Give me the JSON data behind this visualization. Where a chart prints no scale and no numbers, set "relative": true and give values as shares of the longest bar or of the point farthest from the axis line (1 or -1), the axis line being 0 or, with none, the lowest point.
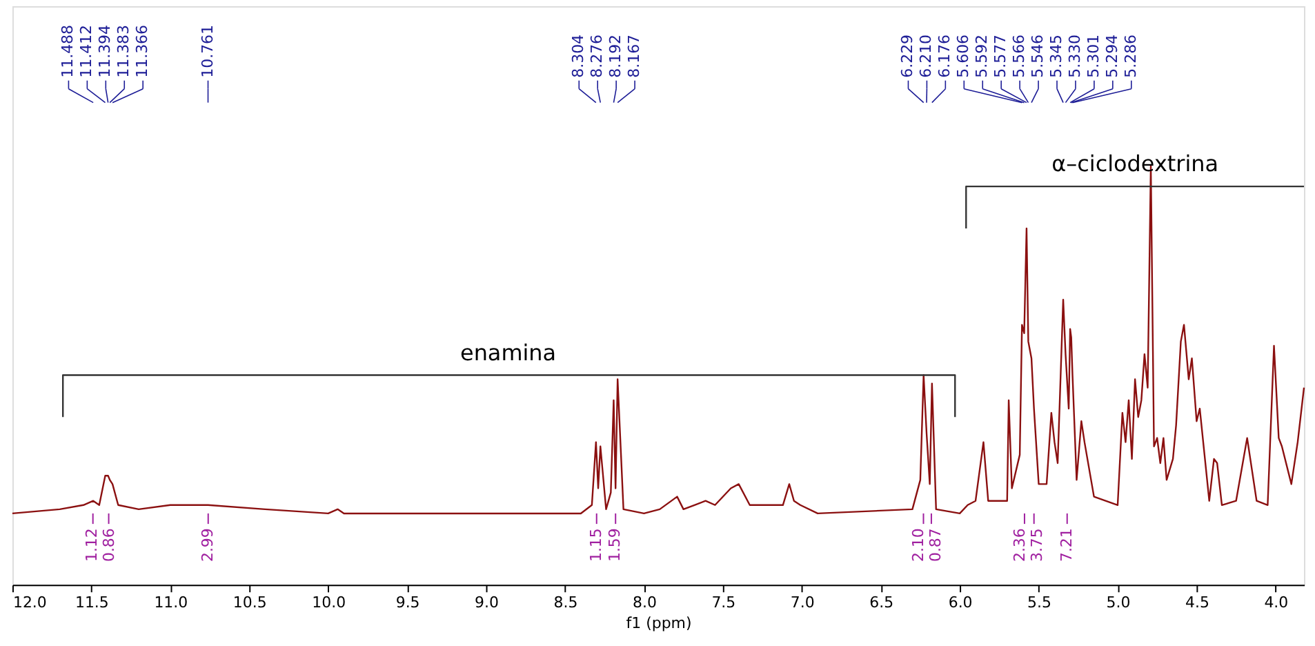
{
  "chart_data": {
    "type": "line",
    "relative": true,
    "xlabel": "f1 (ppm)",
    "xlim": [
      12.0,
      3.82
    ],
    "xticks": [
      {
        "value": 12,
        "label": "12.0"
      },
      11.5,
      {
        "value": 11,
        "label": "11.0"
      },
      10.5,
      {
        "value": 10,
        "label": "10.0"
      },
      9.5,
      {
        "value": 9,
        "label": "9.0"
      },
      8.5,
      {
        "value": 8,
        "label": "8.0"
      },
      7.5,
      {
        "value": 7,
        "label": "7.0"
      },
      6.5,
      {
        "value": 6,
        "label": "6.0"
      },
      5.5,
      {
        "value": 5,
        "label": "5.0"
      },
      4.5,
      {
        "value": 4,
        "label": "4.0"
      }
    ],
    "grid": false,
    "marker": "none",
    "line_style": "solid",
    "series": [
      {
        "color": "#8b1010",
        "x": [
          12.0,
          11.7,
          11.55,
          11.488,
          11.45,
          11.412,
          11.394,
          11.383,
          11.366,
          11.33,
          11.2,
          11.0,
          10.761,
          10.4,
          10.0,
          9.94,
          9.9,
          9.0,
          8.4,
          8.33,
          8.304,
          8.29,
          8.276,
          8.24,
          8.21,
          8.192,
          8.18,
          8.167,
          8.13,
          8.0,
          7.9,
          7.79,
          7.75,
          7.68,
          7.61,
          7.55,
          7.45,
          7.4,
          7.33,
          7.25,
          7.2,
          7.18,
          7.12,
          7.08,
          7.05,
          7.01,
          6.9,
          6.3,
          6.25,
          6.229,
          6.21,
          6.19,
          6.176,
          6.15,
          6.0,
          5.95,
          5.9,
          5.85,
          5.82,
          5.7,
          5.69,
          5.67,
          5.62,
          5.606,
          5.592,
          5.577,
          5.566,
          5.546,
          5.53,
          5.5,
          5.45,
          5.42,
          5.4,
          5.38,
          5.345,
          5.33,
          5.31,
          5.301,
          5.294,
          5.286,
          5.26,
          5.23,
          5.21,
          5.15,
          5.0,
          4.97,
          4.95,
          4.93,
          4.91,
          4.89,
          4.87,
          4.85,
          4.83,
          4.81,
          4.79,
          4.77,
          4.75,
          4.73,
          4.71,
          4.69,
          4.65,
          4.63,
          4.6,
          4.58,
          4.55,
          4.53,
          4.5,
          4.48,
          4.45,
          4.42,
          4.39,
          4.37,
          4.34,
          4.25,
          4.18,
          4.12,
          4.05,
          4.01,
          3.98,
          3.96,
          3.9,
          3.86,
          3.82
        ],
        "values": [
          0.17,
          0.18,
          0.19,
          0.2,
          0.19,
          0.26,
          0.26,
          0.25,
          0.24,
          0.19,
          0.18,
          0.19,
          0.19,
          0.18,
          0.17,
          0.18,
          0.17,
          0.17,
          0.17,
          0.19,
          0.34,
          0.23,
          0.33,
          0.18,
          0.22,
          0.44,
          0.23,
          0.49,
          0.18,
          0.17,
          0.18,
          0.21,
          0.18,
          0.19,
          0.2,
          0.19,
          0.23,
          0.24,
          0.19,
          0.19,
          0.19,
          0.19,
          0.19,
          0.24,
          0.2,
          0.19,
          0.17,
          0.18,
          0.25,
          0.5,
          0.36,
          0.24,
          0.48,
          0.18,
          0.17,
          0.19,
          0.2,
          0.34,
          0.2,
          0.2,
          0.44,
          0.23,
          0.31,
          0.62,
          0.6,
          0.85,
          0.58,
          0.54,
          0.42,
          0.24,
          0.24,
          0.41,
          0.34,
          0.29,
          0.68,
          0.55,
          0.42,
          0.61,
          0.59,
          0.5,
          0.25,
          0.39,
          0.34,
          0.21,
          0.19,
          0.41,
          0.34,
          0.44,
          0.3,
          0.49,
          0.4,
          0.44,
          0.55,
          0.47,
          1.0,
          0.33,
          0.35,
          0.29,
          0.35,
          0.25,
          0.3,
          0.38,
          0.58,
          0.62,
          0.49,
          0.54,
          0.39,
          0.42,
          0.31,
          0.2,
          0.3,
          0.29,
          0.19,
          0.2,
          0.35,
          0.2,
          0.19,
          0.57,
          0.35,
          0.33,
          0.24,
          0.34,
          0.47
        ]
      },
      {
        "color": "#333333",
        "x": [
          11.68,
          11.68,
          6.03,
          6.03
        ],
        "values": [
          0.4,
          0.5,
          0.5,
          0.4
        ]
      },
      {
        "color": "#333333",
        "x": [
          5.96,
          5.96,
          3.82
        ],
        "values": [
          0.85,
          0.95,
          0.95
        ]
      }
    ],
    "annotations": [
      {
        "text": "enamina",
        "x": 8.86,
        "y": 0.5
      },
      {
        "text": "α–ciclodextrina",
        "x": 4.89,
        "y": 0.95
      },
      {
        "text": "11.488",
        "x": 11.488
      },
      {
        "text": "11.412",
        "x": 11.412
      },
      {
        "text": "11.394",
        "x": 11.394
      },
      {
        "text": "11.383",
        "x": 11.383
      },
      {
        "text": "11.366",
        "x": 11.366
      },
      {
        "text": "10.761",
        "x": 10.761
      },
      {
        "text": "8.304",
        "x": 8.304
      },
      {
        "text": "8.276",
        "x": 8.276
      },
      {
        "text": "8.192",
        "x": 8.192
      },
      {
        "text": "8.167",
        "x": 8.167
      },
      {
        "text": "6.229",
        "x": 6.229
      },
      {
        "text": "6.210",
        "x": 6.21
      },
      {
        "text": "6.176",
        "x": 6.176
      },
      {
        "text": "5.606",
        "x": 5.606
      },
      {
        "text": "5.592",
        "x": 5.592
      },
      {
        "text": "5.577",
        "x": 5.577
      },
      {
        "text": "5.566",
        "x": 5.566
      },
      {
        "text": "5.546",
        "x": 5.546
      },
      {
        "text": "5.345",
        "x": 5.345
      },
      {
        "text": "5.330",
        "x": 5.33
      },
      {
        "text": "5.301",
        "x": 5.301
      },
      {
        "text": "5.294",
        "x": 5.294
      },
      {
        "text": "5.286",
        "x": 5.286
      },
      {
        "text": "1.12",
        "x": 11.49
      },
      {
        "text": "0.86",
        "x": 11.39
      },
      {
        "text": "2.99",
        "x": 10.76
      },
      {
        "text": "1.15",
        "x": 8.3
      },
      {
        "text": "1.59",
        "x": 8.18
      },
      {
        "text": "2.10",
        "x": 6.23
      },
      {
        "text": "0.87",
        "x": 6.18
      },
      {
        "text": "2.36",
        "x": 5.59
      },
      {
        "text": "3.75",
        "x": 5.53
      },
      {
        "text": "7.21",
        "x": 5.32
      }
    ]
  }
}
